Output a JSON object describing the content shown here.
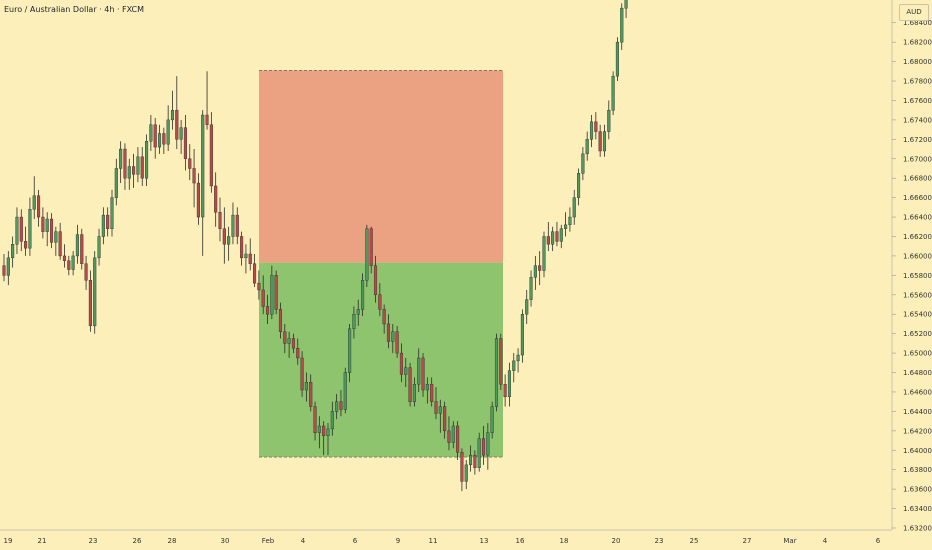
{
  "header": {
    "title": "Euro / Australian Dollar · 4h · FXCM",
    "currency": "AUD"
  },
  "colors": {
    "background": "#fdefb9",
    "bull": "#4e9a5e",
    "bear": "#b84a4a",
    "wick": "#2b2b2b",
    "stop_zone": "#eaa283",
    "target_zone": "#8fc46e"
  },
  "chart_data": {
    "type": "candlestick",
    "symbol": "Euro / Australian Dollar",
    "timeframe": "4h",
    "source": "FXCM",
    "price_axis": {
      "position": "right",
      "ylim": [
        1.632,
        1.688
      ],
      "ticks": [
        "1.68400",
        "1.68200",
        "1.68000",
        "1.67800",
        "1.67600",
        "1.67400",
        "1.67200",
        "1.67000",
        "1.66800",
        "1.66600",
        "1.66400",
        "1.66200",
        "1.66000",
        "1.65800",
        "1.65600",
        "1.65400",
        "1.65200",
        "1.65000",
        "1.64800",
        "1.64600",
        "1.64400",
        "1.64200",
        "1.64000",
        "1.63800",
        "1.63600",
        "1.63400",
        "1.63200"
      ]
    },
    "time_axis": {
      "labels": [
        "19",
        "21",
        "23",
        "26",
        "28",
        "30",
        "Feb",
        "4",
        "6",
        "9",
        "11",
        "13",
        "16",
        "18",
        "20",
        "23",
        "25",
        "27",
        "Mar",
        "4",
        "6"
      ]
    },
    "position_tool": {
      "stop_top": 1.6791,
      "entry": 1.6593,
      "target_bottom": 1.6393,
      "start_label": "30",
      "end_label": "13"
    },
    "ohlc": [
      [
        1.659,
        1.6602,
        1.6574,
        1.658
      ],
      [
        1.658,
        1.6605,
        1.657,
        1.6598
      ],
      [
        1.6598,
        1.662,
        1.6588,
        1.6612
      ],
      [
        1.6612,
        1.665,
        1.6602,
        1.664
      ],
      [
        1.664,
        1.6648,
        1.6605,
        1.6615
      ],
      [
        1.6615,
        1.663,
        1.66,
        1.6608
      ],
      [
        1.6608,
        1.666,
        1.66,
        1.6648
      ],
      [
        1.6648,
        1.6682,
        1.6638,
        1.6662
      ],
      [
        1.6662,
        1.6668,
        1.663,
        1.664
      ],
      [
        1.664,
        1.665,
        1.6618,
        1.6625
      ],
      [
        1.6625,
        1.6645,
        1.661,
        1.6638
      ],
      [
        1.6638,
        1.6644,
        1.6608,
        1.6614
      ],
      [
        1.6614,
        1.663,
        1.66,
        1.6625
      ],
      [
        1.6625,
        1.6634,
        1.6596,
        1.66
      ],
      [
        1.66,
        1.6612,
        1.6588,
        1.6595
      ],
      [
        1.6595,
        1.66,
        1.658,
        1.6586
      ],
      [
        1.6586,
        1.6605,
        1.658,
        1.66
      ],
      [
        1.66,
        1.6632,
        1.6592,
        1.6622
      ],
      [
        1.6622,
        1.6628,
        1.6586,
        1.6592
      ],
      [
        1.6592,
        1.66,
        1.6565,
        1.6575
      ],
      [
        1.6575,
        1.6585,
        1.6522,
        1.6528
      ],
      [
        1.6528,
        1.6605,
        1.652,
        1.6598
      ],
      [
        1.6598,
        1.6628,
        1.659,
        1.662
      ],
      [
        1.662,
        1.665,
        1.6612,
        1.6642
      ],
      [
        1.6642,
        1.665,
        1.662,
        1.6628
      ],
      [
        1.6628,
        1.6668,
        1.662,
        1.666
      ],
      [
        1.666,
        1.67,
        1.6652,
        1.669
      ],
      [
        1.669,
        1.6718,
        1.6675,
        1.671
      ],
      [
        1.671,
        1.6716,
        1.6668,
        1.668
      ],
      [
        1.668,
        1.67,
        1.6668,
        1.6692
      ],
      [
        1.6692,
        1.6705,
        1.667,
        1.6684
      ],
      [
        1.6684,
        1.6712,
        1.6676,
        1.6702
      ],
      [
        1.6702,
        1.6712,
        1.6672,
        1.668
      ],
      [
        1.668,
        1.6725,
        1.6672,
        1.6718
      ],
      [
        1.6718,
        1.6745,
        1.6708,
        1.6735
      ],
      [
        1.6735,
        1.6742,
        1.67,
        1.6712
      ],
      [
        1.6712,
        1.6735,
        1.6705,
        1.6726
      ],
      [
        1.6726,
        1.6732,
        1.6705,
        1.6715
      ],
      [
        1.6715,
        1.6755,
        1.6708,
        1.674
      ],
      [
        1.674,
        1.677,
        1.673,
        1.675
      ],
      [
        1.675,
        1.6785,
        1.671,
        1.672
      ],
      [
        1.672,
        1.674,
        1.6705,
        1.6732
      ],
      [
        1.6732,
        1.6745,
        1.6688,
        1.67
      ],
      [
        1.67,
        1.6715,
        1.6678,
        1.669
      ],
      [
        1.669,
        1.671,
        1.665,
        1.6675
      ],
      [
        1.6675,
        1.6685,
        1.6632,
        1.664
      ],
      [
        1.664,
        1.675,
        1.66,
        1.6745
      ],
      [
        1.6745,
        1.679,
        1.673,
        1.6735
      ],
      [
        1.6735,
        1.6748,
        1.6665,
        1.6672
      ],
      [
        1.6672,
        1.6686,
        1.663,
        1.6645
      ],
      [
        1.6645,
        1.666,
        1.6615,
        1.6628
      ],
      [
        1.6628,
        1.665,
        1.6592,
        1.6612
      ],
      [
        1.6612,
        1.663,
        1.6595,
        1.662
      ],
      [
        1.662,
        1.6655,
        1.6612,
        1.6642
      ],
      [
        1.6642,
        1.665,
        1.6612,
        1.662
      ],
      [
        1.662,
        1.6625,
        1.659,
        1.6598
      ],
      [
        1.6598,
        1.6612,
        1.6582,
        1.6602
      ],
      [
        1.6602,
        1.6618,
        1.6585,
        1.6592
      ],
      [
        1.6592,
        1.6602,
        1.6568,
        1.6572
      ],
      [
        1.6572,
        1.6585,
        1.6555,
        1.6565
      ],
      [
        1.6565,
        1.658,
        1.654,
        1.6548
      ],
      [
        1.6548,
        1.656,
        1.653,
        1.654
      ],
      [
        1.654,
        1.659,
        1.6535,
        1.658
      ],
      [
        1.658,
        1.6585,
        1.654,
        1.6545
      ],
      [
        1.6545,
        1.6552,
        1.6515,
        1.6522
      ],
      [
        1.6522,
        1.653,
        1.65,
        1.651
      ],
      [
        1.651,
        1.6522,
        1.6495,
        1.6515
      ],
      [
        1.6515,
        1.652,
        1.65,
        1.6505
      ],
      [
        1.6505,
        1.6515,
        1.6488,
        1.6495
      ],
      [
        1.6495,
        1.6502,
        1.6455,
        1.6462
      ],
      [
        1.6462,
        1.648,
        1.645,
        1.647
      ],
      [
        1.647,
        1.6478,
        1.644,
        1.6445
      ],
      [
        1.6445,
        1.645,
        1.641,
        1.6418
      ],
      [
        1.6418,
        1.6435,
        1.6402,
        1.6425
      ],
      [
        1.6425,
        1.643,
        1.6395,
        1.6415
      ],
      [
        1.6415,
        1.6428,
        1.6395,
        1.6422
      ],
      [
        1.6422,
        1.645,
        1.6415,
        1.644
      ],
      [
        1.644,
        1.6458,
        1.6432,
        1.645
      ],
      [
        1.645,
        1.6462,
        1.6435,
        1.6442
      ],
      [
        1.6442,
        1.6485,
        1.6438,
        1.648
      ],
      [
        1.648,
        1.653,
        1.647,
        1.6525
      ],
      [
        1.6525,
        1.6548,
        1.6515,
        1.654
      ],
      [
        1.654,
        1.6555,
        1.6528,
        1.6545
      ],
      [
        1.6545,
        1.6582,
        1.6538,
        1.6575
      ],
      [
        1.6575,
        1.6632,
        1.6568,
        1.6628
      ],
      [
        1.6628,
        1.663,
        1.6582,
        1.659
      ],
      [
        1.659,
        1.66,
        1.6552,
        1.656
      ],
      [
        1.656,
        1.6572,
        1.6538,
        1.6545
      ],
      [
        1.6545,
        1.655,
        1.652,
        1.653
      ],
      [
        1.653,
        1.654,
        1.6505,
        1.6512
      ],
      [
        1.6512,
        1.653,
        1.65,
        1.6522
      ],
      [
        1.6522,
        1.6528,
        1.6495,
        1.65
      ],
      [
        1.65,
        1.651,
        1.647,
        1.6478
      ],
      [
        1.6478,
        1.6495,
        1.6465,
        1.6485
      ],
      [
        1.6485,
        1.649,
        1.6445,
        1.645
      ],
      [
        1.645,
        1.6475,
        1.6445,
        1.6468
      ],
      [
        1.6468,
        1.6505,
        1.646,
        1.6495
      ],
      [
        1.6495,
        1.65,
        1.6455,
        1.6462
      ],
      [
        1.6462,
        1.6475,
        1.6448,
        1.6468
      ],
      [
        1.6468,
        1.6475,
        1.6445,
        1.645
      ],
      [
        1.645,
        1.6465,
        1.6432,
        1.6438
      ],
      [
        1.6438,
        1.6452,
        1.6418,
        1.6445
      ],
      [
        1.6445,
        1.645,
        1.6412,
        1.642
      ],
      [
        1.642,
        1.6435,
        1.64,
        1.6408
      ],
      [
        1.6408,
        1.643,
        1.6402,
        1.6425
      ],
      [
        1.6425,
        1.643,
        1.639,
        1.6398
      ],
      [
        1.6398,
        1.6402,
        1.6358,
        1.6368
      ],
      [
        1.6368,
        1.639,
        1.636,
        1.6385
      ],
      [
        1.6385,
        1.6405,
        1.6378,
        1.6395
      ],
      [
        1.6395,
        1.64,
        1.6375,
        1.6382
      ],
      [
        1.6382,
        1.6418,
        1.6378,
        1.6412
      ],
      [
        1.6412,
        1.6425,
        1.6385,
        1.6395
      ],
      [
        1.6395,
        1.6428,
        1.638,
        1.6418
      ],
      [
        1.6418,
        1.645,
        1.6412,
        1.6445
      ],
      [
        1.6445,
        1.652,
        1.644,
        1.6515
      ],
      [
        1.6515,
        1.652,
        1.6462,
        1.6468
      ],
      [
        1.6468,
        1.6478,
        1.6445,
        1.6455
      ],
      [
        1.6455,
        1.649,
        1.6445,
        1.6482
      ],
      [
        1.6482,
        1.65,
        1.647,
        1.6492
      ],
      [
        1.6492,
        1.6505,
        1.648,
        1.6498
      ],
      [
        1.6498,
        1.6545,
        1.649,
        1.654
      ],
      [
        1.654,
        1.6565,
        1.653,
        1.6555
      ],
      [
        1.6555,
        1.6585,
        1.6548,
        1.6578
      ],
      [
        1.6578,
        1.66,
        1.6565,
        1.659
      ],
      [
        1.659,
        1.6605,
        1.657,
        1.6585
      ],
      [
        1.6585,
        1.6625,
        1.6578,
        1.662
      ],
      [
        1.662,
        1.6635,
        1.6605,
        1.6612
      ],
      [
        1.6612,
        1.663,
        1.6605,
        1.6625
      ],
      [
        1.6625,
        1.6635,
        1.661,
        1.6615
      ],
      [
        1.6615,
        1.6632,
        1.6608,
        1.6628
      ],
      [
        1.6628,
        1.6645,
        1.662,
        1.6632
      ],
      [
        1.6632,
        1.665,
        1.6625,
        1.664
      ],
      [
        1.664,
        1.6668,
        1.6632,
        1.666
      ],
      [
        1.666,
        1.669,
        1.6652,
        1.6685
      ],
      [
        1.6685,
        1.6712,
        1.6678,
        1.6705
      ],
      [
        1.6705,
        1.6728,
        1.6698,
        1.672
      ],
      [
        1.672,
        1.6745,
        1.6712,
        1.6738
      ],
      [
        1.6738,
        1.6748,
        1.672,
        1.6728
      ],
      [
        1.6728,
        1.6735,
        1.6702,
        1.6708
      ],
      [
        1.6708,
        1.6735,
        1.6702,
        1.6728
      ],
      [
        1.6728,
        1.676,
        1.672,
        1.675
      ],
      [
        1.675,
        1.679,
        1.6745,
        1.6785
      ],
      [
        1.6785,
        1.6825,
        1.678,
        1.682
      ],
      [
        1.682,
        1.686,
        1.6812,
        1.6855
      ],
      [
        1.6855,
        1.688,
        1.6845,
        1.6875
      ]
    ]
  }
}
